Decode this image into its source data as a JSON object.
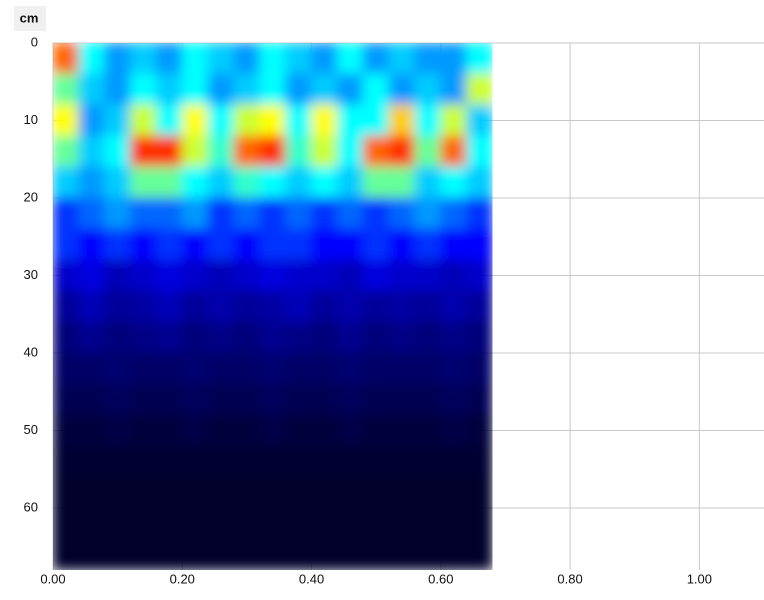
{
  "chart_data": {
    "type": "heatmap",
    "y_label": "cm",
    "xlim": [
      0,
      1.1
    ],
    "ylim": [
      0,
      68
    ],
    "y_inverted": true,
    "grid": true,
    "xticks": [
      {
        "value": 0,
        "label": "0.00"
      },
      {
        "value": 0.2,
        "label": "0.20"
      },
      {
        "value": 0.4,
        "label": "0.40"
      },
      {
        "value": 0.6,
        "label": "0.60"
      },
      {
        "value": 0.8,
        "label": "0.80"
      },
      {
        "value": 1.0,
        "label": "1.00"
      }
    ],
    "yticks": [
      0,
      10,
      20,
      30,
      40,
      50,
      60
    ],
    "colorscale": [
      "#000000",
      "#0000ff",
      "#00ffff",
      "#ffff00",
      "#ff0000"
    ],
    "xbins": [
      0,
      0.04,
      0.08,
      0.12,
      0.16,
      0.2,
      0.24,
      0.28,
      0.32,
      0.36,
      0.4,
      0.44,
      0.48,
      0.52,
      0.56,
      0.6,
      0.64,
      0.68
    ],
    "ybins": [
      0,
      4,
      8,
      12,
      16,
      20,
      24,
      28,
      32,
      36,
      40,
      44,
      48,
      52,
      56,
      60,
      64,
      68
    ],
    "values": [
      [
        0.9,
        0.5,
        0.4,
        0.45,
        0.4,
        0.5,
        0.45,
        0.4,
        0.5,
        0.45,
        0.4,
        0.5,
        0.4,
        0.45,
        0.4,
        0.4,
        0.5
      ],
      [
        0.6,
        0.45,
        0.4,
        0.5,
        0.45,
        0.5,
        0.4,
        0.45,
        0.5,
        0.4,
        0.45,
        0.4,
        0.5,
        0.4,
        0.45,
        0.4,
        0.7
      ],
      [
        0.75,
        0.4,
        0.45,
        0.7,
        0.5,
        0.75,
        0.5,
        0.7,
        0.75,
        0.5,
        0.75,
        0.5,
        0.5,
        0.8,
        0.5,
        0.7,
        0.45
      ],
      [
        0.6,
        0.45,
        0.5,
        0.95,
        0.95,
        0.7,
        0.55,
        0.9,
        0.95,
        0.55,
        0.7,
        0.5,
        0.9,
        0.95,
        0.6,
        0.9,
        0.5
      ],
      [
        0.45,
        0.4,
        0.45,
        0.6,
        0.6,
        0.5,
        0.45,
        0.55,
        0.5,
        0.45,
        0.5,
        0.45,
        0.6,
        0.6,
        0.45,
        0.5,
        0.45
      ],
      [
        0.3,
        0.35,
        0.4,
        0.35,
        0.35,
        0.4,
        0.3,
        0.35,
        0.3,
        0.35,
        0.3,
        0.35,
        0.3,
        0.35,
        0.4,
        0.35,
        0.3
      ],
      [
        0.3,
        0.25,
        0.3,
        0.25,
        0.3,
        0.25,
        0.3,
        0.25,
        0.3,
        0.3,
        0.25,
        0.25,
        0.3,
        0.25,
        0.3,
        0.25,
        0.25
      ],
      [
        0.2,
        0.22,
        0.18,
        0.2,
        0.22,
        0.2,
        0.18,
        0.2,
        0.22,
        0.2,
        0.2,
        0.18,
        0.22,
        0.2,
        0.2,
        0.18,
        0.2
      ],
      [
        0.15,
        0.18,
        0.15,
        0.16,
        0.18,
        0.15,
        0.17,
        0.15,
        0.16,
        0.18,
        0.15,
        0.17,
        0.15,
        0.16,
        0.15,
        0.17,
        0.15
      ],
      [
        0.12,
        0.14,
        0.12,
        0.13,
        0.14,
        0.12,
        0.13,
        0.12,
        0.14,
        0.13,
        0.12,
        0.14,
        0.12,
        0.13,
        0.12,
        0.13,
        0.12
      ],
      [
        0.1,
        0.1,
        0.11,
        0.1,
        0.1,
        0.11,
        0.1,
        0.1,
        0.11,
        0.1,
        0.1,
        0.11,
        0.1,
        0.1,
        0.1,
        0.11,
        0.1
      ],
      [
        0.08,
        0.08,
        0.09,
        0.08,
        0.08,
        0.09,
        0.08,
        0.08,
        0.09,
        0.08,
        0.08,
        0.09,
        0.08,
        0.08,
        0.08,
        0.09,
        0.08
      ],
      [
        0.06,
        0.06,
        0.07,
        0.06,
        0.06,
        0.07,
        0.06,
        0.06,
        0.07,
        0.06,
        0.06,
        0.07,
        0.06,
        0.06,
        0.06,
        0.07,
        0.06
      ],
      [
        0.05,
        0.05,
        0.05,
        0.05,
        0.05,
        0.05,
        0.05,
        0.05,
        0.05,
        0.05,
        0.05,
        0.05,
        0.05,
        0.05,
        0.05,
        0.05,
        0.05
      ],
      [
        0.04,
        0.04,
        0.04,
        0.04,
        0.04,
        0.04,
        0.04,
        0.04,
        0.04,
        0.04,
        0.04,
        0.04,
        0.04,
        0.04,
        0.04,
        0.04,
        0.04
      ],
      [
        0.04,
        0.04,
        0.04,
        0.04,
        0.04,
        0.04,
        0.04,
        0.04,
        0.04,
        0.04,
        0.04,
        0.04,
        0.04,
        0.04,
        0.04,
        0.04,
        0.04
      ],
      [
        0.04,
        0.04,
        0.04,
        0.04,
        0.04,
        0.04,
        0.04,
        0.04,
        0.04,
        0.04,
        0.04,
        0.04,
        0.04,
        0.04,
        0.04,
        0.04,
        0.04
      ]
    ]
  }
}
